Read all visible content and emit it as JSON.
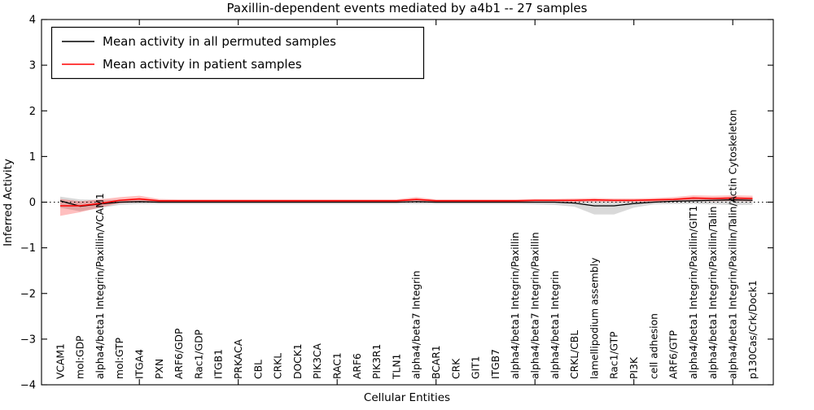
{
  "title": "Paxillin-dependent events mediated by a4b1 -- 27 samples",
  "axes": {
    "ylabel": "Inferred Activity",
    "xlabel": "Cellular Entities",
    "yticks": [
      4,
      3,
      2,
      1,
      0,
      -1,
      -2,
      -3,
      -4
    ],
    "ylim": [
      -4,
      4
    ]
  },
  "legend": {
    "position": "upper left",
    "items": [
      {
        "label": "Mean activity in all permuted samples",
        "color": "#000000"
      },
      {
        "label": "Mean activity in patient samples",
        "color": "#ff0000"
      }
    ]
  },
  "colors": {
    "permuted_line": "#000000",
    "patient_line": "#ff0000",
    "permuted_band": "rgba(128,128,128,0.30)",
    "patient_band": "rgba(255,0,0,0.25)",
    "zero_line": "#000000",
    "background": "#ffffff"
  },
  "chart_data": {
    "type": "line",
    "title": "Paxillin-dependent events mediated by a4b1 -- 27 samples",
    "xlabel": "Cellular Entities",
    "ylabel": "Inferred Activity",
    "ylim": [
      -4,
      4
    ],
    "yticks": [
      4,
      3,
      2,
      1,
      0,
      -1,
      -2,
      -3,
      -4
    ],
    "zero_line": true,
    "grid": false,
    "legend_position": "upper left",
    "xtick_indices": [
      4,
      9,
      14,
      19,
      24,
      29,
      34
    ],
    "categories": [
      "VCAM1",
      "mol:GDP",
      "alpha4/beta1 Integrin/Paxillin/VCAM1",
      "mol:GTP",
      "ITGA4",
      "PXN",
      "ARF6/GDP",
      "Rac1/GDP",
      "ITGB1",
      "PRKACA",
      "CBL",
      "CRKL",
      "DOCK1",
      "PIK3CA",
      "RAC1",
      "ARF6",
      "PIK3R1",
      "TLN1",
      "alpha4/beta7 Integrin",
      "BCAR1",
      "CRK",
      "GIT1",
      "ITGB7",
      "alpha4/beta1 Integrin/Paxillin",
      "alpha4/beta7 Integrin/Paxillin",
      "alpha4/beta1 Integrin",
      "CRKL/CBL",
      "lamellipodium assembly",
      "Rac1/GTP",
      "PI3K",
      "cell adhesion",
      "ARF6/GTP",
      "alpha4/beta1 Integrin/Paxillin/GIT1",
      "alpha4/beta1 Integrin/Paxillin/Talin",
      "alpha4/beta1 Integrin/Paxillin/Talin/Actin Cytoskeleton",
      "p130Cas/Crk/Dock1"
    ],
    "series": [
      {
        "name": "Mean activity in all permuted samples",
        "color": "#000000",
        "band_color": "rgba(128,128,128,0.30)",
        "values": [
          0.03,
          -0.09,
          -0.04,
          0.0,
          0.01,
          0.0,
          0.0,
          0.0,
          0.0,
          0.0,
          0.0,
          0.0,
          0.0,
          0.0,
          0.0,
          0.0,
          0.0,
          0.0,
          0.01,
          0.0,
          0.0,
          0.0,
          0.0,
          0.0,
          0.0,
          0.0,
          -0.02,
          -0.08,
          -0.08,
          -0.03,
          0.0,
          0.02,
          0.03,
          0.04,
          0.05,
          0.04
        ],
        "band_upper": [
          0.12,
          0.06,
          0.05,
          0.05,
          0.05,
          0.04,
          0.04,
          0.04,
          0.04,
          0.04,
          0.04,
          0.04,
          0.04,
          0.04,
          0.04,
          0.04,
          0.04,
          0.04,
          0.05,
          0.04,
          0.04,
          0.04,
          0.04,
          0.04,
          0.04,
          0.03,
          0.03,
          0.02,
          0.02,
          0.03,
          0.04,
          0.06,
          0.08,
          0.09,
          0.1,
          0.09
        ],
        "band_lower": [
          -0.12,
          -0.2,
          -0.13,
          -0.06,
          -0.04,
          -0.04,
          -0.04,
          -0.04,
          -0.04,
          -0.04,
          -0.04,
          -0.04,
          -0.04,
          -0.04,
          -0.04,
          -0.04,
          -0.04,
          -0.04,
          -0.04,
          -0.04,
          -0.04,
          -0.04,
          -0.04,
          -0.04,
          -0.05,
          -0.06,
          -0.1,
          -0.27,
          -0.27,
          -0.12,
          -0.05,
          -0.04,
          -0.04,
          -0.05,
          -0.06,
          -0.06
        ]
      },
      {
        "name": "Mean activity in patient samples",
        "color": "#ff0000",
        "band_color": "rgba(255,0,0,0.25)",
        "values": [
          -0.08,
          -0.08,
          -0.03,
          0.04,
          0.07,
          0.03,
          0.03,
          0.03,
          0.03,
          0.03,
          0.03,
          0.03,
          0.03,
          0.03,
          0.03,
          0.03,
          0.03,
          0.03,
          0.06,
          0.03,
          0.03,
          0.03,
          0.03,
          0.03,
          0.04,
          0.04,
          0.04,
          0.05,
          0.04,
          0.04,
          0.05,
          0.06,
          0.09,
          0.08,
          0.09,
          0.08
        ],
        "band_upper": [
          0.07,
          0.02,
          0.06,
          0.11,
          0.14,
          0.07,
          0.06,
          0.06,
          0.06,
          0.06,
          0.06,
          0.06,
          0.06,
          0.06,
          0.06,
          0.06,
          0.06,
          0.06,
          0.11,
          0.06,
          0.06,
          0.06,
          0.06,
          0.06,
          0.07,
          0.07,
          0.08,
          0.09,
          0.08,
          0.08,
          0.09,
          0.11,
          0.15,
          0.14,
          0.15,
          0.14
        ],
        "band_lower": [
          -0.3,
          -0.22,
          -0.12,
          -0.02,
          0.0,
          -0.01,
          0.0,
          0.0,
          0.0,
          0.0,
          0.0,
          0.0,
          0.0,
          0.0,
          0.0,
          0.0,
          0.0,
          0.0,
          0.01,
          0.0,
          0.0,
          0.0,
          0.0,
          0.0,
          0.0,
          0.0,
          0.0,
          0.01,
          0.0,
          0.0,
          0.01,
          0.01,
          0.03,
          0.02,
          0.03,
          0.02
        ]
      }
    ]
  }
}
